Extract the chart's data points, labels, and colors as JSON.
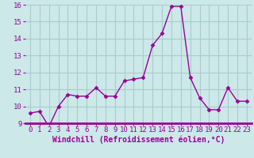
{
  "x": [
    0,
    1,
    2,
    3,
    4,
    5,
    6,
    7,
    8,
    9,
    10,
    11,
    12,
    13,
    14,
    15,
    16,
    17,
    18,
    19,
    20,
    21,
    22,
    23
  ],
  "y": [
    9.6,
    9.7,
    8.8,
    10.0,
    10.7,
    10.6,
    10.6,
    11.1,
    10.6,
    10.6,
    11.5,
    11.6,
    11.7,
    13.6,
    14.3,
    15.9,
    15.9,
    11.7,
    10.5,
    9.8,
    9.8,
    11.1,
    10.3,
    10.3
  ],
  "ylim": [
    9,
    16
  ],
  "xlim_min": -0.5,
  "xlim_max": 23.5,
  "yticks": [
    9,
    10,
    11,
    12,
    13,
    14,
    15,
    16
  ],
  "xticks": [
    0,
    1,
    2,
    3,
    4,
    5,
    6,
    7,
    8,
    9,
    10,
    11,
    12,
    13,
    14,
    15,
    16,
    17,
    18,
    19,
    20,
    21,
    22,
    23
  ],
  "xlabel": "Windchill (Refroidissement éolien,°C)",
  "line_color": "#990099",
  "marker": "D",
  "marker_size": 2.5,
  "bg_color": "#cce8e8",
  "grid_color": "#aacccc",
  "tick_fontsize": 6.5,
  "xlabel_fontsize": 7,
  "spine_color": "#990099"
}
